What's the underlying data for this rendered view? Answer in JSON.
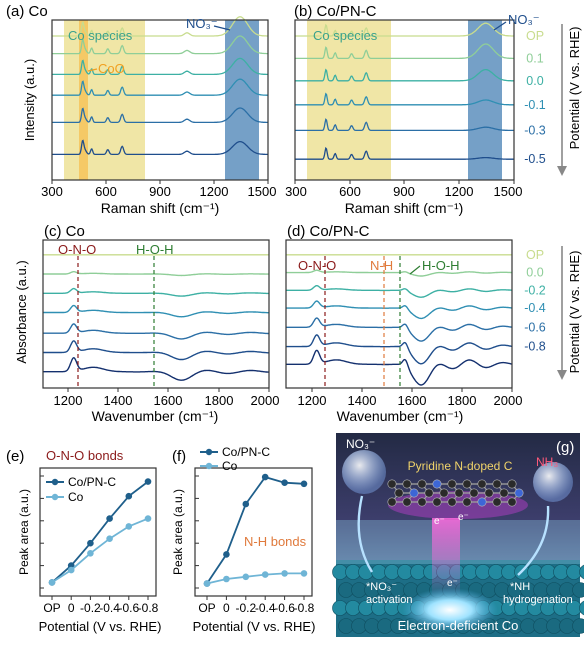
{
  "chart_data": [
    {
      "id": "a",
      "type": "line",
      "panel_label": "(a) Co",
      "xlabel": "Raman shift (cm⁻¹)",
      "ylabel": "Intensity (a.u.)",
      "xlim": [
        300,
        1500
      ],
      "xticks": [
        300,
        600,
        900,
        1200,
        1500
      ],
      "annotations": [
        "Co species",
        "CoO",
        "NO₃⁻"
      ],
      "spans": [
        {
          "range": [
            380,
            810
          ],
          "color": "#f0e6a6"
        },
        {
          "range": [
            450,
            500
          ],
          "color": "#f6c35a"
        },
        {
          "range": [
            1255,
            1440
          ],
          "color": "#5d8fbd"
        }
      ],
      "series": [
        {
          "potential": "OP",
          "color": "#c8dc8e",
          "baseline": 0.9,
          "nitrate_peak": 0.12
        },
        {
          "potential": "0.1",
          "color": "#8fce98",
          "baseline": 0.79,
          "nitrate_peak": 0.11
        },
        {
          "potential": "0.0",
          "color": "#3db0a4",
          "baseline": 0.66,
          "nitrate_peak": 0.1
        },
        {
          "potential": "-0.1",
          "color": "#2f8fb3",
          "baseline": 0.53,
          "nitrate_peak": 0.1
        },
        {
          "potential": "-0.3",
          "color": "#2b6fa6",
          "baseline": 0.36,
          "nitrate_peak": 0.09
        },
        {
          "potential": "-0.5",
          "color": "#1f4e8c",
          "baseline": 0.16,
          "nitrate_peak": 0.08
        }
      ]
    },
    {
      "id": "b",
      "type": "line",
      "panel_label": "(b) Co/PN-C",
      "xlabel": "Raman shift (cm⁻¹)",
      "ylabel": "Potential (V vs. RHE)",
      "xlim": [
        300,
        1500
      ],
      "xticks": [
        300,
        600,
        900,
        1200,
        1500
      ],
      "annotations": [
        "Co species",
        "NO₃⁻"
      ],
      "spans": [
        {
          "range": [
            380,
            810
          ],
          "color": "#f0e6a6"
        },
        {
          "range": [
            1260,
            1450
          ],
          "color": "#5d8fbd"
        }
      ],
      "series": [
        {
          "potential": "OP",
          "color": "#c8dc8e",
          "baseline": 0.9,
          "nitrate_peak": 0.08
        },
        {
          "potential": "0.1",
          "color": "#8fce98",
          "baseline": 0.76,
          "nitrate_peak": 0.09
        },
        {
          "potential": "0.0",
          "color": "#3db0a4",
          "baseline": 0.62,
          "nitrate_peak": 0.07
        },
        {
          "potential": "-0.1",
          "color": "#2f8fb3",
          "baseline": 0.47,
          "nitrate_peak": 0.03
        },
        {
          "potential": "-0.3",
          "color": "#2b6fa6",
          "baseline": 0.31,
          "nitrate_peak": 0.02
        },
        {
          "potential": "-0.5",
          "color": "#1f4e8c",
          "baseline": 0.13,
          "nitrate_peak": 0.01
        }
      ]
    },
    {
      "id": "c",
      "type": "line",
      "panel_label": "(c) Co",
      "xlabel": "Wavenumber (cm⁻¹)",
      "ylabel": "Absorbance (a.u.)",
      "xlim": [
        1100,
        2000
      ],
      "xticks": [
        1200,
        1400,
        1600,
        1800,
        2000
      ],
      "annotations": [
        "O-N-O",
        "H-O-H"
      ],
      "series": [
        {
          "color": "#c8dc8e",
          "baseline": 0.9
        },
        {
          "color": "#8fce98",
          "baseline": 0.77
        },
        {
          "color": "#3db0a4",
          "baseline": 0.64
        },
        {
          "color": "#2f8fb3",
          "baseline": 0.51
        },
        {
          "color": "#2b6fa6",
          "baseline": 0.37
        },
        {
          "color": "#1f4e8c",
          "baseline": 0.24
        },
        {
          "color": "#14306e",
          "baseline": 0.11
        }
      ]
    },
    {
      "id": "d",
      "type": "line",
      "panel_label": "(d) Co/PN-C",
      "xlabel": "Wavenumber (cm⁻¹)",
      "ylabel": "Potential (V vs. RHE)",
      "xlim": [
        1100,
        2000
      ],
      "xticks": [
        1200,
        1400,
        1600,
        1800,
        2000
      ],
      "annotations": [
        "O-N-O",
        "N-H",
        "H-O-H"
      ],
      "series": [
        {
          "potential": "OP",
          "color": "#c8dc8e",
          "baseline": 0.9
        },
        {
          "potential": "0.0",
          "color": "#8fce98",
          "baseline": 0.78
        },
        {
          "potential": "-0.2",
          "color": "#3db0a4",
          "baseline": 0.66
        },
        {
          "potential": "-0.4",
          "color": "#2f8fb3",
          "baseline": 0.54
        },
        {
          "potential": "-0.6",
          "color": "#2b6fa6",
          "baseline": 0.41
        },
        {
          "potential": "-0.8",
          "color": "#1f4e8c",
          "baseline": 0.28
        },
        {
          "color": "#14306e",
          "baseline": 0.16
        }
      ]
    },
    {
      "id": "e",
      "type": "line",
      "panel_label": "(e)",
      "title": "O-N-O bonds",
      "xlabel": "Potential (V vs. RHE)",
      "ylabel": "Peak area (a.u.)",
      "categories": [
        "OP",
        "0",
        "-0.2",
        "-0.4",
        "-0.6",
        "-0.8"
      ],
      "ylim": [
        0,
        1
      ],
      "series": [
        {
          "name": "Co/PN-C",
          "color": "#1f5f8b",
          "values": [
            0.05,
            0.2,
            0.4,
            0.62,
            0.82,
            0.95
          ]
        },
        {
          "name": "Co",
          "color": "#6fb5d6",
          "values": [
            0.05,
            0.16,
            0.31,
            0.44,
            0.55,
            0.62
          ]
        }
      ]
    },
    {
      "id": "f",
      "type": "line",
      "panel_label": "(f)",
      "title": "N-H bonds",
      "xlabel": "Potential (V vs. RHE)",
      "ylabel": "Peak area (a.u.)",
      "categories": [
        "OP",
        "0",
        "-0.2",
        "-0.4",
        "-0.6",
        "-0.8"
      ],
      "ylim": [
        0,
        1
      ],
      "series": [
        {
          "name": "Co/PN-C",
          "color": "#1f5f8b",
          "values": [
            0.04,
            0.3,
            0.75,
            0.99,
            0.94,
            0.93
          ]
        },
        {
          "name": "Co",
          "color": "#6fb5d6",
          "values": [
            0.04,
            0.08,
            0.1,
            0.12,
            0.13,
            0.13
          ]
        }
      ]
    }
  ],
  "scheme": {
    "panel_label": "(g)",
    "title": "Pyridine N-doped C",
    "nitrate": "NO₃⁻",
    "ammonia": "NH₃",
    "electron": "e⁻",
    "step1_species": "*NO₃⁻",
    "step1_label": "activation",
    "step2_species": "*NH",
    "step2_label": "hydrogenation",
    "substrate": "Electron-deficient Co"
  }
}
